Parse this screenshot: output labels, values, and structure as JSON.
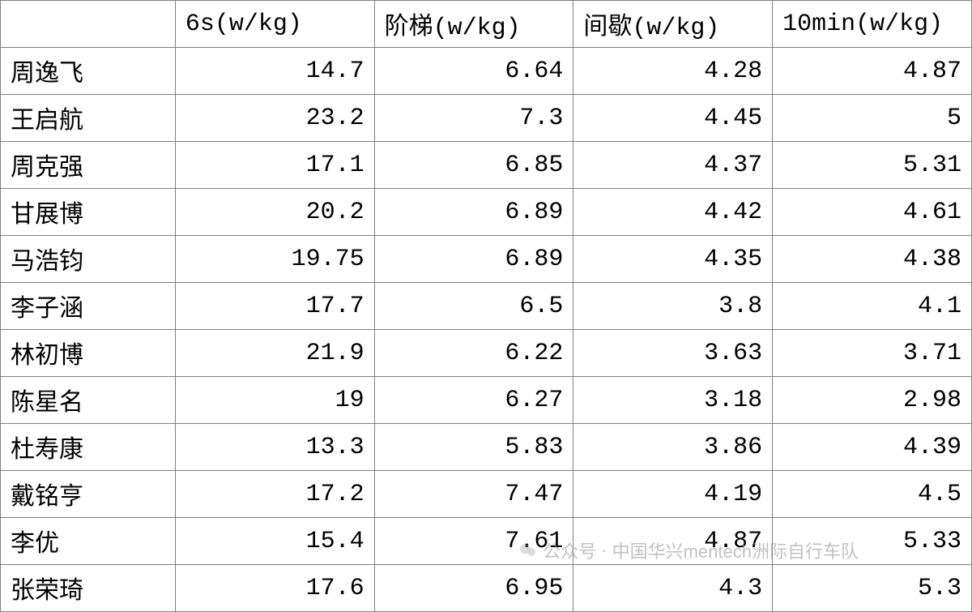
{
  "table": {
    "columns": [
      "",
      "6s(w/kg)",
      "阶梯(w/kg)",
      "间歇(w/kg)",
      "10min(w/kg)"
    ],
    "rows": [
      [
        "周逸飞",
        "14.7",
        "6.64",
        "4.28",
        "4.87"
      ],
      [
        "王启航",
        "23.2",
        "7.3",
        "4.45",
        "5"
      ],
      [
        "周克强",
        "17.1",
        "6.85",
        "4.37",
        "5.31"
      ],
      [
        "甘展博",
        "20.2",
        "6.89",
        "4.42",
        "4.61"
      ],
      [
        "马浩钧",
        "19.75",
        "6.89",
        "4.35",
        "4.38"
      ],
      [
        "李子涵",
        "17.7",
        "6.5",
        "3.8",
        "4.1"
      ],
      [
        "林初博",
        "21.9",
        "6.22",
        "3.63",
        "3.71"
      ],
      [
        "陈星名",
        "19",
        "6.27",
        "3.18",
        "2.98"
      ],
      [
        "杜寿康",
        "13.3",
        "5.83",
        "3.86",
        "4.39"
      ],
      [
        "戴铭亨",
        "17.2",
        "7.47",
        "4.19",
        "4.5"
      ],
      [
        "李优",
        "15.4",
        "7.61",
        "4.87",
        "5.33"
      ],
      [
        "张荣琦",
        "17.6",
        "6.95",
        "4.3",
        "5.3"
      ]
    ],
    "border_color": "#7f7f7f",
    "background_color": "#ffffff",
    "font_size": 30,
    "text_color": "#000000"
  },
  "watermark": {
    "label": "公众号",
    "text": "中国华兴mentech洲际自行车队",
    "color": "#999999"
  }
}
